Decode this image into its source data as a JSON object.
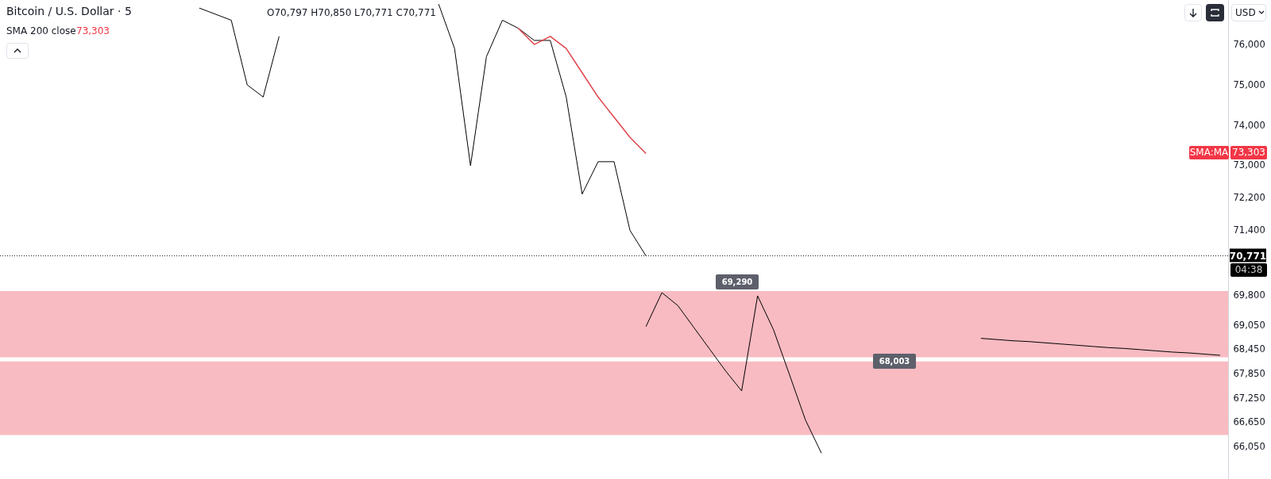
{
  "chart_data": {
    "type": "line",
    "title": "Bitcoin / U.S. Dollar · 5",
    "categories": [
      null,
      null,
      null,
      null,
      null,
      null,
      null,
      null,
      null,
      null,
      null,
      null,
      null,
      null,
      null,
      null,
      null,
      null,
      null,
      null,
      null,
      null,
      null,
      null,
      null,
      null,
      null,
      null,
      null,
      null,
      null,
      null,
      null,
      null,
      null,
      null,
      null,
      null,
      null,
      null,
      null,
      null,
      null,
      null,
      null,
      null,
      null,
      null,
      null,
      null,
      null,
      null,
      null,
      null,
      null,
      null,
      null,
      null,
      null,
      null,
      null,
      null,
      null,
      null,
      null,
      null,
      null,
      null,
      null,
      null,
      null,
      null,
      null,
      null,
      null,
      null,
      null
    ],
    "series": [
      {
        "color": "#000000",
        "values": [
          null,
          null,
          null,
          null,
          null,
          null,
          null,
          null,
          null,
          null,
          null,
          null,
          76900,
          76750,
          76600,
          75000,
          74700,
          76200,
          null,
          null,
          null,
          null,
          null,
          null,
          null,
          null,
          null,
          77000,
          75900,
          73000,
          75700,
          76600,
          76400,
          76100,
          76100,
          74700,
          72300,
          73100,
          73100,
          71400,
          70771,
          null,
          null,
          null,
          null,
          null,
          null,
          null,
          null,
          null,
          null,
          null,
          null,
          null,
          null,
          null,
          null,
          null,
          null,
          null,
          null,
          null,
          null,
          null,
          null,
          null,
          null,
          null,
          null,
          null,
          null,
          null,
          null,
          null,
          null,
          null,
          null
        ]
      },
      {
        "color": "#e0434b",
        "values": [
          null,
          null,
          null,
          null,
          null,
          null,
          null,
          null,
          null,
          null,
          null,
          null,
          null,
          null,
          null,
          null,
          null,
          null,
          null,
          null,
          null,
          null,
          null,
          null,
          null,
          null,
          null,
          null,
          null,
          null,
          null,
          null,
          76400,
          76000,
          76200,
          75900,
          75300,
          74700,
          74200,
          73700,
          73303,
          null,
          null,
          null,
          null,
          null,
          null,
          null,
          null,
          null,
          null,
          null,
          null,
          null,
          null,
          null,
          null,
          null,
          null,
          null,
          null,
          null,
          null,
          null,
          null,
          null,
          null,
          null,
          null,
          null,
          null,
          null,
          null,
          null,
          null,
          null,
          null
        ]
      },
      {
        "color": "#000000",
        "values": [
          null,
          null,
          null,
          null,
          null,
          null,
          null,
          null,
          null,
          null,
          null,
          null,
          null,
          null,
          null,
          null,
          null,
          null,
          null,
          null,
          null,
          null,
          null,
          null,
          null,
          null,
          null,
          null,
          null,
          null,
          null,
          null,
          null,
          null,
          null,
          null,
          null,
          null,
          null,
          null,
          69020,
          69860,
          69540,
          69000,
          68460,
          67920,
          67430,
          69780,
          68940,
          67830,
          66710,
          65890,
          null,
          null,
          null,
          null,
          null,
          null,
          null,
          null,
          null,
          null,
          null,
          null,
          null,
          null,
          null,
          null,
          null,
          null,
          null,
          null,
          null,
          null,
          null,
          null,
          null
        ]
      },
      {
        "color": "#000000",
        "values": [
          null,
          null,
          null,
          null,
          null,
          null,
          null,
          null,
          null,
          null,
          null,
          null,
          null,
          null,
          null,
          null,
          null,
          null,
          null,
          null,
          null,
          null,
          null,
          null,
          null,
          null,
          null,
          null,
          null,
          null,
          null,
          null,
          null,
          null,
          null,
          null,
          null,
          null,
          null,
          null,
          null,
          null,
          null,
          null,
          null,
          null,
          null,
          null,
          null,
          null,
          null,
          null,
          null,
          null,
          null,
          null,
          null,
          null,
          null,
          null,
          null,
          68730,
          68700,
          68670,
          68650,
          68620,
          68590,
          68560,
          68530,
          68500,
          68480,
          68450,
          68420,
          68390,
          68370,
          68340,
          68310
        ]
      }
    ],
    "ylim": [
      65250,
      77100
    ],
    "yticks": [
      {
        "value": 76000,
        "label": "76,000"
      },
      {
        "value": 75000,
        "label": "75,000"
      },
      {
        "value": 74000,
        "label": "74,000"
      },
      {
        "value": 73000,
        "label": "73,000"
      },
      {
        "value": 72200,
        "label": "72,200"
      },
      {
        "value": 71400,
        "label": "71,400"
      },
      {
        "value": 69800,
        "label": "69,800"
      },
      {
        "value": 69050,
        "label": "69,050"
      },
      {
        "value": 68450,
        "label": "68,450"
      },
      {
        "value": 67850,
        "label": "67,850"
      },
      {
        "value": 67250,
        "label": "67,250"
      },
      {
        "value": 66650,
        "label": "66,650"
      },
      {
        "value": 66050,
        "label": "66,050"
      }
    ],
    "tick_labels": "y",
    "bands": [
      {
        "axis": "y",
        "from": 68260,
        "to": 69900,
        "color": "#f8bbc1"
      },
      {
        "axis": "y",
        "from": 66340,
        "to": 68160,
        "color": "#f8bbc1"
      }
    ],
    "ref_lines": [
      {
        "axis": "y",
        "value": 70771,
        "label": "70,771",
        "line_style": "dotted"
      }
    ],
    "annotations": [
      "O70,797 H70,850 L70,771 C70,771",
      "SMA 200 close",
      "73,303",
      "SMA:MA",
      "73,303",
      "04:38",
      "69,290",
      "68,003",
      "USD"
    ]
  }
}
